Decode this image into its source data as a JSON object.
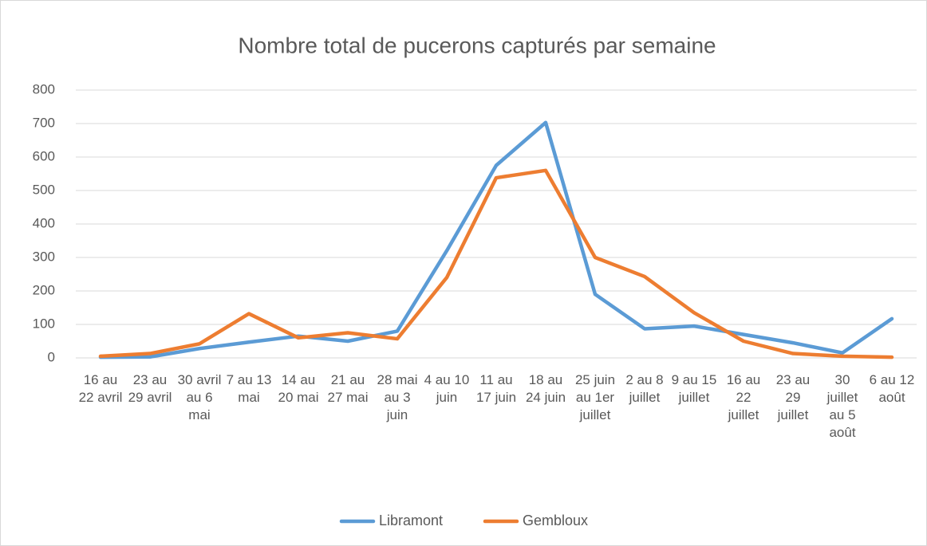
{
  "chart_data": {
    "type": "line",
    "title": "Nombre total de pucerons capturés par semaine",
    "categories": [
      "16 au 22 avril",
      "23 au 29 avril",
      "30 avril au 6 mai",
      "7 au 13 mai",
      "14 au 20 mai",
      "21 au 27 mai",
      "28 mai au 3 juin",
      "4 au 10 juin",
      "11 au 17 juin",
      "18 au 24 juin",
      "25 juin au 1er juillet",
      "2 au 8 juillet",
      "9 au 15 juillet",
      "16 au 22 juillet",
      "23 au 29 juillet",
      "30 juillet au 5 août",
      "6 au 12 août"
    ],
    "series": [
      {
        "name": "Libramont",
        "color": "#5b9bd5",
        "values": [
          2,
          3,
          28,
          47,
          65,
          50,
          80,
          320,
          575,
          703,
          190,
          87,
          95,
          70,
          45,
          15,
          117
        ]
      },
      {
        "name": "Gembloux",
        "color": "#ed7d31",
        "values": [
          5,
          13,
          42,
          132,
          60,
          75,
          57,
          240,
          538,
          560,
          300,
          243,
          135,
          50,
          13,
          5,
          2
        ]
      }
    ],
    "ylim": [
      0,
      800
    ],
    "yticks": [
      0,
      100,
      200,
      300,
      400,
      500,
      600,
      700,
      800
    ],
    "grid": true,
    "legend": "bottom"
  }
}
